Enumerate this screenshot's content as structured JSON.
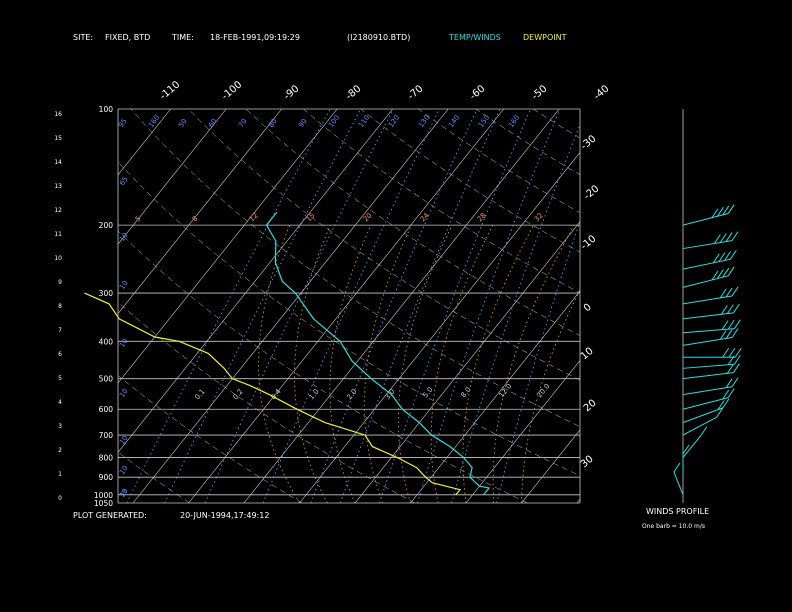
{
  "header": {
    "site_label": "SITE:",
    "site_value": "FIXED, BTD",
    "time_label": "TIME:",
    "time_value": "18-FEB-1991,09:19:29",
    "file_value": "(I2180910.BTD)",
    "legend_temp": "TEMP/WINDS",
    "legend_dew": "DEWPOINT"
  },
  "footer": {
    "generated_label": "PLOT GENERATED:",
    "generated_value": "20-JUN-1994,17:49:12",
    "winds_title": "WINDS PROFILE",
    "barb_note": "One barb = 10.0 m/s"
  },
  "colors": {
    "temp": "#22e0e0",
    "dew": "#f0f020",
    "grid": "#c8c8c8",
    "mixing": "#5a8cff",
    "adiabat": "#ff8c5a",
    "axis_text": "#ffffff",
    "header_cyan": "#22e0e0",
    "header_yellow": "#f0f020"
  },
  "chart_data": {
    "type": "line",
    "subtype": "skew-T log-P",
    "pressure_levels_mb": [
      100,
      200,
      300,
      400,
      500,
      600,
      700,
      800,
      900,
      1000,
      1050
    ],
    "pressure_labels": [
      "100",
      "200",
      "300",
      "400",
      "500",
      "600",
      "700",
      "800",
      "900",
      "1000",
      "1050"
    ],
    "height_labels_km": [
      "16",
      "15",
      "14",
      "13",
      "12",
      "11",
      "10",
      "9",
      "8",
      "7",
      "6",
      "5",
      "4",
      "3",
      "2",
      "1",
      "0"
    ],
    "top_temp_labels": [
      "-110",
      "-100",
      "-90",
      "-80",
      "-70",
      "-60",
      "-50",
      "-40"
    ],
    "right_temp_labels": [
      "-30",
      "-20",
      "-10",
      "0",
      "10",
      "20",
      "30"
    ],
    "mixing_ratio_labels": [
      "0.1",
      "0.2",
      "0.4",
      "1.0",
      "2.0",
      "3.0",
      "5.0",
      "8.0",
      "12.0",
      "20.0"
    ],
    "top_theta_labels": [
      "95",
      "160",
      "50",
      "60",
      "70",
      "80",
      "90",
      "100",
      "110",
      "120",
      "130",
      "140",
      "150",
      "160"
    ],
    "theta_e_labels": [
      "5",
      "8",
      "12",
      "15",
      "20",
      "24",
      "28",
      "32"
    ],
    "left_theta_labels": [
      "65",
      "10",
      "10",
      "10",
      "10",
      "10",
      "10",
      "10",
      "35"
    ],
    "temperature": {
      "name": "TEMP/WINDS",
      "points": [
        {
          "p": 1000,
          "t": 22
        },
        {
          "p": 960,
          "t": 22
        },
        {
          "p": 950,
          "t": 20
        },
        {
          "p": 900,
          "t": 17
        },
        {
          "p": 850,
          "t": 16
        },
        {
          "p": 800,
          "t": 13
        },
        {
          "p": 750,
          "t": 9
        },
        {
          "p": 700,
          "t": 4
        },
        {
          "p": 650,
          "t": 0
        },
        {
          "p": 600,
          "t": -5
        },
        {
          "p": 550,
          "t": -9
        },
        {
          "p": 500,
          "t": -15
        },
        {
          "p": 450,
          "t": -21
        },
        {
          "p": 400,
          "t": -26
        },
        {
          "p": 350,
          "t": -34
        },
        {
          "p": 300,
          "t": -41
        },
        {
          "p": 280,
          "t": -45
        },
        {
          "p": 250,
          "t": -49
        },
        {
          "p": 220,
          "t": -52
        },
        {
          "p": 200,
          "t": -56
        },
        {
          "p": 185,
          "t": -56
        }
      ]
    },
    "dewpoint": {
      "name": "DEWPOINT",
      "points": [
        {
          "p": 1000,
          "t": 17
        },
        {
          "p": 970,
          "t": 17
        },
        {
          "p": 950,
          "t": 14
        },
        {
          "p": 930,
          "t": 11
        },
        {
          "p": 900,
          "t": 9
        },
        {
          "p": 850,
          "t": 6
        },
        {
          "p": 800,
          "t": 1
        },
        {
          "p": 750,
          "t": -5
        },
        {
          "p": 700,
          "t": -8
        },
        {
          "p": 650,
          "t": -17
        },
        {
          "p": 600,
          "t": -24
        },
        {
          "p": 550,
          "t": -31
        },
        {
          "p": 520,
          "t": -36
        },
        {
          "p": 500,
          "t": -40
        },
        {
          "p": 470,
          "t": -43
        },
        {
          "p": 430,
          "t": -48
        },
        {
          "p": 400,
          "t": -55
        },
        {
          "p": 390,
          "t": -60
        },
        {
          "p": 350,
          "t": -69
        },
        {
          "p": 320,
          "t": -73
        },
        {
          "p": 300,
          "t": -79
        }
      ]
    },
    "winds_profile": [
      {
        "p": 200,
        "dir": 240,
        "speed_ms": 40
      },
      {
        "p": 230,
        "dir": 250,
        "speed_ms": 35
      },
      {
        "p": 260,
        "dir": 245,
        "speed_ms": 40
      },
      {
        "p": 290,
        "dir": 240,
        "speed_ms": 35
      },
      {
        "p": 320,
        "dir": 250,
        "speed_ms": 30
      },
      {
        "p": 350,
        "dir": 255,
        "speed_ms": 30
      },
      {
        "p": 380,
        "dir": 260,
        "speed_ms": 25
      },
      {
        "p": 410,
        "dir": 250,
        "speed_ms": 25
      },
      {
        "p": 440,
        "dir": 270,
        "speed_ms": 25
      },
      {
        "p": 470,
        "dir": 260,
        "speed_ms": 20
      },
      {
        "p": 500,
        "dir": 255,
        "speed_ms": 20
      },
      {
        "p": 550,
        "dir": 250,
        "speed_ms": 15
      },
      {
        "p": 600,
        "dir": 240,
        "speed_ms": 15
      },
      {
        "p": 650,
        "dir": 230,
        "speed_ms": 15
      },
      {
        "p": 700,
        "dir": 220,
        "speed_ms": 10
      },
      {
        "p": 800,
        "dir": 200,
        "speed_ms": 10
      },
      {
        "p": 900,
        "dir": 180,
        "speed_ms": 10
      },
      {
        "p": 1000,
        "dir": 170,
        "speed_ms": 10
      }
    ]
  }
}
